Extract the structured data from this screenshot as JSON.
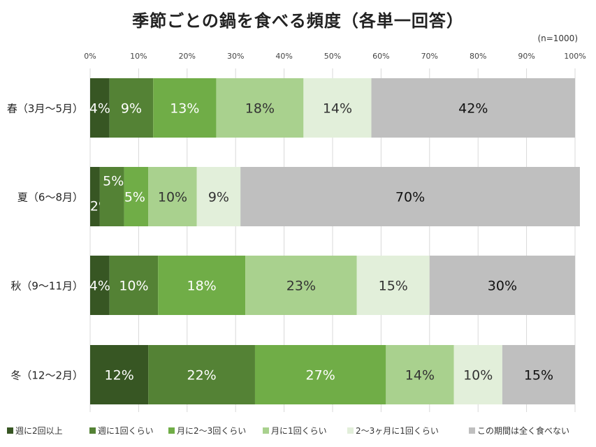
{
  "title": "季節ごとの鍋を食べる頻度（各単一回答）",
  "sample_note": "(n=1000)",
  "chart_data": {
    "type": "bar",
    "orientation": "horizontal",
    "stacked": true,
    "percent_scale": true,
    "title": "季節ごとの鍋を食べる頻度（各単一回答）",
    "xlim": [
      0,
      100
    ],
    "x_ticks": [
      "0%",
      "10%",
      "20%",
      "30%",
      "40%",
      "50%",
      "60%",
      "70%",
      "80%",
      "90%",
      "100%"
    ],
    "grid": true,
    "legend_position": "bottom",
    "categories": [
      "春（3月～5月）",
      "夏（6～8月）",
      "秋（9～11月）",
      "冬（12～2月）"
    ],
    "series": [
      {
        "name": "週に2回以上",
        "color": "#375623",
        "values": [
          4,
          2,
          4,
          12
        ],
        "labels": [
          "4%",
          "2%",
          "4%",
          "12%"
        ],
        "label_color": "#ffffff"
      },
      {
        "name": "週に1回くらい",
        "color": "#548235",
        "values": [
          9,
          5,
          10,
          22
        ],
        "labels": [
          "9%",
          "5%",
          "10%",
          "22%"
        ],
        "label_color": "#ffffff"
      },
      {
        "name": "月に2～3回くらい",
        "color": "#70ad47",
        "values": [
          13,
          5,
          18,
          27
        ],
        "labels": [
          "13%",
          "5%",
          "18%",
          "27%"
        ],
        "label_color": "#ffffff"
      },
      {
        "name": "月に1回くらい",
        "color": "#a9d18e",
        "values": [
          18,
          10,
          23,
          14
        ],
        "labels": [
          "18%",
          "10%",
          "23%",
          "14%"
        ],
        "label_color": "#333333"
      },
      {
        "name": "2～3ヶ月に1回くらい",
        "color": "#e2efda",
        "values": [
          14,
          9,
          15,
          10
        ],
        "labels": [
          "14%",
          "9%",
          "15%",
          "10%"
        ],
        "label_color": "#333333"
      },
      {
        "name": "この期間は全く食べない",
        "color": "#bfbfbf",
        "values": [
          42,
          70,
          30,
          15
        ],
        "labels": [
          "42%",
          "70%",
          "30%",
          "15%"
        ],
        "label_color": "#111111"
      }
    ]
  }
}
